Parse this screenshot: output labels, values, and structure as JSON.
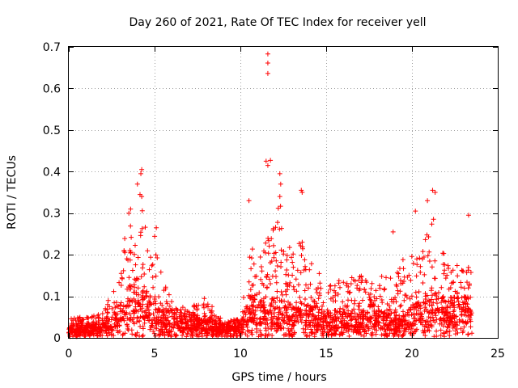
{
  "chart_data": {
    "type": "scatter",
    "title": "Day 260 of 2021, Rate Of TEC Index for receiver yell",
    "xlabel": "GPS time / hours",
    "ylabel": "ROTI / TECUs",
    "xlim": [
      0,
      25
    ],
    "ylim": [
      0,
      0.7
    ],
    "x_ticks": [
      0,
      5,
      10,
      15,
      20,
      25
    ],
    "x_tick_labels": [
      "0",
      "5",
      "10",
      "15",
      "20",
      "25"
    ],
    "y_ticks": [
      0,
      0.1,
      0.2,
      0.3,
      0.4,
      0.5,
      0.6,
      0.7
    ],
    "y_tick_labels": [
      "0",
      "0.1",
      "0.2",
      "0.3",
      "0.4",
      "0.5",
      "0.6",
      "0.7"
    ],
    "grid": true,
    "marker": "+",
    "series_color": "#ff0000",
    "envelope": {
      "description": "Approximate upper envelope of dense point cloud (hours, ROTI)",
      "x": [
        0,
        1,
        2,
        2.5,
        3,
        3.3,
        3.6,
        4,
        4.3,
        4.7,
        5,
        5.5,
        6,
        7,
        8,
        9,
        10,
        10.3,
        10.6,
        11,
        11.4,
        11.8,
        12.2,
        12.6,
        13,
        13.5,
        14,
        15,
        16,
        17,
        18,
        19,
        19.5,
        20,
        20.5,
        21,
        21.3,
        21.6,
        22,
        22.5,
        23,
        23.5
      ],
      "upper": [
        0.05,
        0.05,
        0.06,
        0.1,
        0.16,
        0.26,
        0.27,
        0.23,
        0.32,
        0.2,
        0.26,
        0.14,
        0.09,
        0.07,
        0.1,
        0.04,
        0.05,
        0.14,
        0.24,
        0.16,
        0.25,
        0.3,
        0.36,
        0.27,
        0.2,
        0.32,
        0.2,
        0.13,
        0.14,
        0.15,
        0.15,
        0.15,
        0.2,
        0.2,
        0.21,
        0.27,
        0.3,
        0.26,
        0.18,
        0.18,
        0.18,
        0.17
      ],
      "base": [
        0.02,
        0.02,
        0.025,
        0.035,
        0.05,
        0.07,
        0.08,
        0.07,
        0.08,
        0.07,
        0.06,
        0.04,
        0.04,
        0.035,
        0.03,
        0.02,
        0.03,
        0.05,
        0.07,
        0.05,
        0.06,
        0.06,
        0.06,
        0.06,
        0.05,
        0.05,
        0.05,
        0.04,
        0.04,
        0.04,
        0.04,
        0.03,
        0.03,
        0.05,
        0.05,
        0.07,
        0.07,
        0.07,
        0.06,
        0.06,
        0.06,
        0.06
      ]
    },
    "highlight_points": [
      {
        "x": 4.25,
        "y": 0.405
      },
      {
        "x": 4.2,
        "y": 0.395
      },
      {
        "x": 4.0,
        "y": 0.37
      },
      {
        "x": 4.15,
        "y": 0.345
      },
      {
        "x": 4.25,
        "y": 0.34
      },
      {
        "x": 3.5,
        "y": 0.3
      },
      {
        "x": 3.6,
        "y": 0.31
      },
      {
        "x": 11.6,
        "y": 0.683
      },
      {
        "x": 11.6,
        "y": 0.661
      },
      {
        "x": 11.6,
        "y": 0.636
      },
      {
        "x": 11.5,
        "y": 0.425
      },
      {
        "x": 11.75,
        "y": 0.427
      },
      {
        "x": 11.6,
        "y": 0.415
      },
      {
        "x": 12.3,
        "y": 0.395
      },
      {
        "x": 12.35,
        "y": 0.37
      },
      {
        "x": 12.3,
        "y": 0.34
      },
      {
        "x": 13.55,
        "y": 0.355
      },
      {
        "x": 13.6,
        "y": 0.35
      },
      {
        "x": 10.5,
        "y": 0.33
      },
      {
        "x": 18.9,
        "y": 0.255
      },
      {
        "x": 21.2,
        "y": 0.355
      },
      {
        "x": 21.35,
        "y": 0.35
      },
      {
        "x": 20.9,
        "y": 0.33
      },
      {
        "x": 23.3,
        "y": 0.295
      },
      {
        "x": 20.2,
        "y": 0.305
      },
      {
        "x": 5.1,
        "y": 0.265
      },
      {
        "x": 2.3,
        "y": 0.09
      }
    ]
  }
}
